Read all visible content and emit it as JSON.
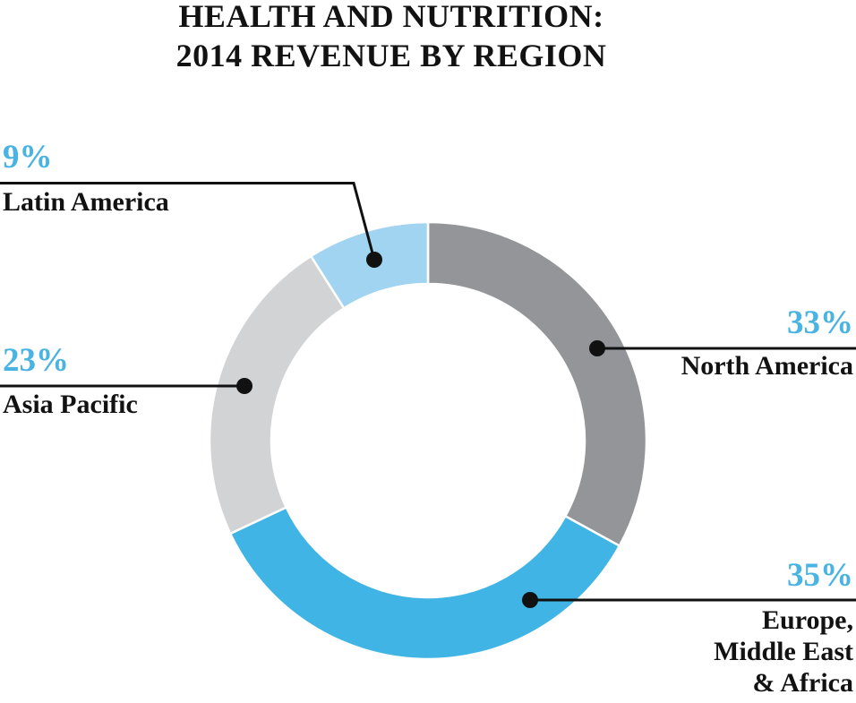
{
  "title": {
    "line1": "HEALTH AND NUTRITION:",
    "line2": "2014 REVENUE BY REGION"
  },
  "chart_data": {
    "type": "pie",
    "subtype": "donut",
    "title": "HEALTH AND NUTRITION: 2014 REVENUE BY REGION",
    "unit": "%",
    "start_angle_deg": 0,
    "direction": "clockwise",
    "segments": [
      {
        "label": "North America",
        "value": 33,
        "color": "#939598"
      },
      {
        "label": "Europe, Middle East & Africa",
        "value": 35,
        "color": "#3fb4e5"
      },
      {
        "label": "Asia Pacific",
        "value": 23,
        "color": "#d2d3d5"
      },
      {
        "label": "Latin America",
        "value": 9,
        "color": "#a0d4f1"
      }
    ],
    "legend_position": "callouts",
    "grid": false
  },
  "callouts": {
    "latin_america": {
      "percent": "9%",
      "label": "Latin America"
    },
    "asia_pacific": {
      "percent": "23%",
      "label": "Asia Pacific"
    },
    "north_america": {
      "percent": "33%",
      "label": "North America"
    },
    "emea": {
      "percent": "35%",
      "label": "Europe,\nMiddle East\n& Africa"
    }
  },
  "colors": {
    "accent_text": "#49b3e3",
    "leader_line": "#111111",
    "title_text": "#121212",
    "background": "#ffffff"
  }
}
